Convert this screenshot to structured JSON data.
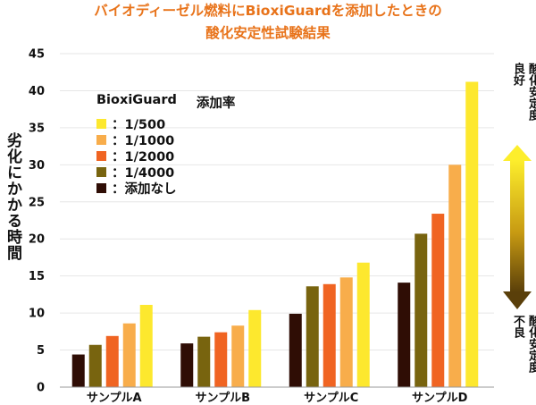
{
  "title_line1": "バイオディーゼル燃料にBioxiGuardを添加したときの",
  "title_line2": "酸化安定性試験結果",
  "colors": {
    "title": "#e8731a",
    "series": [
      "#fde82e",
      "#f8ad4b",
      "#f06422",
      "#78640f",
      "#2f0d05"
    ],
    "axis": "#999999"
  },
  "legend": {
    "header": "BioxiGuard",
    "header2": "添加率",
    "items": [
      "：1/500",
      "：1/1000",
      "：1/2000",
      "：1/4000",
      "：添加なし"
    ]
  },
  "right_top": {
    "col1": "酸化安定度",
    "col2": "良好"
  },
  "right_bottom": {
    "col1": "酸化安定度",
    "col2": "不良"
  },
  "chart_data": {
    "type": "bar",
    "title": "バイオディーゼル燃料にBioxiGuardを添加したときの酸化安定性試験結果",
    "ylabel": "劣化にかかる時間",
    "xlabel": "",
    "ylim": [
      0,
      45
    ],
    "yticks": [
      0,
      5,
      10,
      15,
      20,
      25,
      30,
      35,
      40,
      45
    ],
    "categories": [
      "サンプルA",
      "サンプルB",
      "サンプルC",
      "サンプルD"
    ],
    "grid": true,
    "series": [
      {
        "name": "添加なし",
        "values": [
          4.4,
          5.9,
          9.9,
          14.1
        ]
      },
      {
        "name": "1/4000",
        "values": [
          5.7,
          6.8,
          13.6,
          20.7
        ]
      },
      {
        "name": "1/2000",
        "values": [
          6.9,
          7.4,
          13.9,
          23.4
        ]
      },
      {
        "name": "1/1000",
        "values": [
          8.6,
          8.3,
          14.8,
          30.0
        ]
      },
      {
        "name": "1/500",
        "values": [
          11.1,
          10.4,
          16.8,
          41.2
        ]
      }
    ]
  }
}
